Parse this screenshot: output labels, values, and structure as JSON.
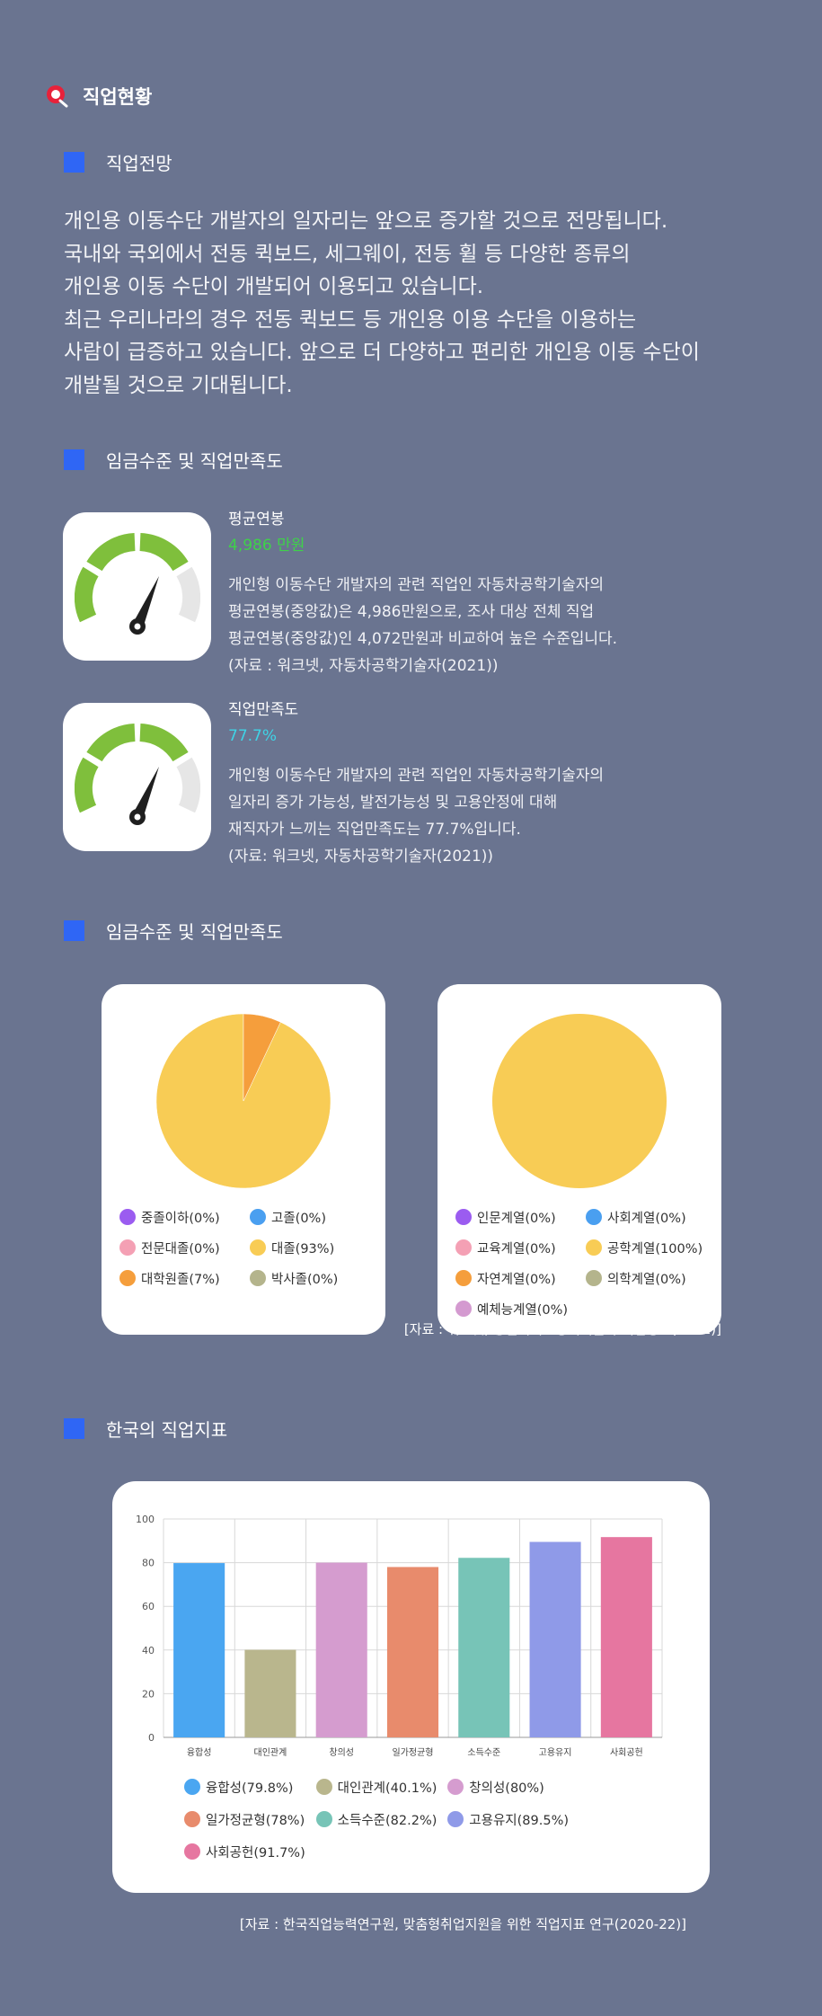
{
  "page_title": "직업현황",
  "sections": {
    "outlook": "직업전망",
    "wage": "임금수준 및 직업만족도",
    "wage2": "임금수준 및 직업만족도",
    "indicators": "한국의 직업지표"
  },
  "outlook_text": [
    "개인용 이동수단 개발자의 일자리는 앞으로 증가할 것으로 전망됩니다.",
    "국내와 국외에서 전동 퀵보드, 세그웨이, 전동 휠 등 다양한 종류의",
    "개인용 이동 수단이 개발되어 이용되고 있습니다.",
    "최근 우리나라의 경우 전동 퀵보드 등 개인용 이용 수단을 이용하는",
    "사람이 급증하고 있습니다. 앞으로 더 다양하고 편리한 개인용 이동 수단이",
    "개발될 것으로 기대됩니다."
  ],
  "salary": {
    "label": "평균연봉",
    "value": "4,986 만원",
    "value_color": "#3fd14a",
    "desc": [
      "개인형 이동수단 개발자의 관련 직업인 자동차공학기술자의",
      "평균연봉(중앙값)은 4,986만원으로, 조사 대상 전체 직업",
      "평균연봉(중앙값)인 4,072만원과 비교하여 높은 수준입니다.",
      "(자료 : 워크넷, 자동차공학기술자(2021))"
    ]
  },
  "satisfaction": {
    "label": "직업만족도",
    "value": "77.7%",
    "value_color": "#3fd3e6",
    "desc": [
      "개인형 이동수단 개발자의 관련 직업인 자동차공학기술자의",
      "일자리 증가 가능성, 발전가능성 및 고용안정에 대해",
      "재직자가 느끼는 직업만족도는 77.7%입니다.",
      "(자료: 워크넷, 자동차공학기술자(2021))"
    ]
  },
  "pie_source": "[자료 : 워크넷, 통신기기 · 장비기술자 직업정보(2021)]",
  "bar_source": "[자료 : 한국직업능력연구원, 맞춤형취업지원을 위한 직업지표 연구(2020-22)]",
  "chart_data": [
    {
      "type": "pie",
      "labels": [
        "중졸이하(0%)",
        "고졸(0%)",
        "전문대졸(0%)",
        "대졸(93%)",
        "대학원졸(7%)",
        "박사졸(0%)"
      ],
      "values": [
        0,
        0,
        0,
        93,
        7,
        0
      ],
      "colors": [
        "#9b5cf0",
        "#4a9ff0",
        "#f4a0b4",
        "#f8cc55",
        "#f59e3c",
        "#b4b48c"
      ]
    },
    {
      "type": "pie",
      "labels": [
        "인문계열(0%)",
        "사회계열(0%)",
        "교육계열(0%)",
        "공학계열(100%)",
        "자연계열(0%)",
        "의학계열(0%)",
        "예체능계열(0%)"
      ],
      "values": [
        0,
        0,
        0,
        100,
        0,
        0,
        0
      ],
      "colors": [
        "#9b5cf0",
        "#4a9ff0",
        "#f4a0b4",
        "#f8cc55",
        "#f59e3c",
        "#b4b48c",
        "#d49ad0"
      ]
    },
    {
      "type": "bar",
      "categories": [
        "융합성",
        "대인관계",
        "창의성",
        "일가정균형",
        "소득수준",
        "고용유지",
        "사회공헌"
      ],
      "values": [
        79.8,
        40.1,
        80,
        78,
        82.2,
        89.5,
        91.7
      ],
      "colors": [
        "#4aa6f1",
        "#b9b68d",
        "#d59ccf",
        "#e88b6c",
        "#77c4b7",
        "#8f9ae8",
        "#e676a0"
      ],
      "yticks": [
        "0",
        "20",
        "40",
        "60",
        "80",
        "100"
      ],
      "ylim": [
        0,
        100
      ],
      "legend": [
        "융합성(79.8%)",
        "대인관계(40.1%)",
        "창의성(80%)",
        "일가정균형(78%)",
        "소득수준(82.2%)",
        "고용유지(89.5%)",
        "사회공헌(91.7%)"
      ]
    }
  ]
}
